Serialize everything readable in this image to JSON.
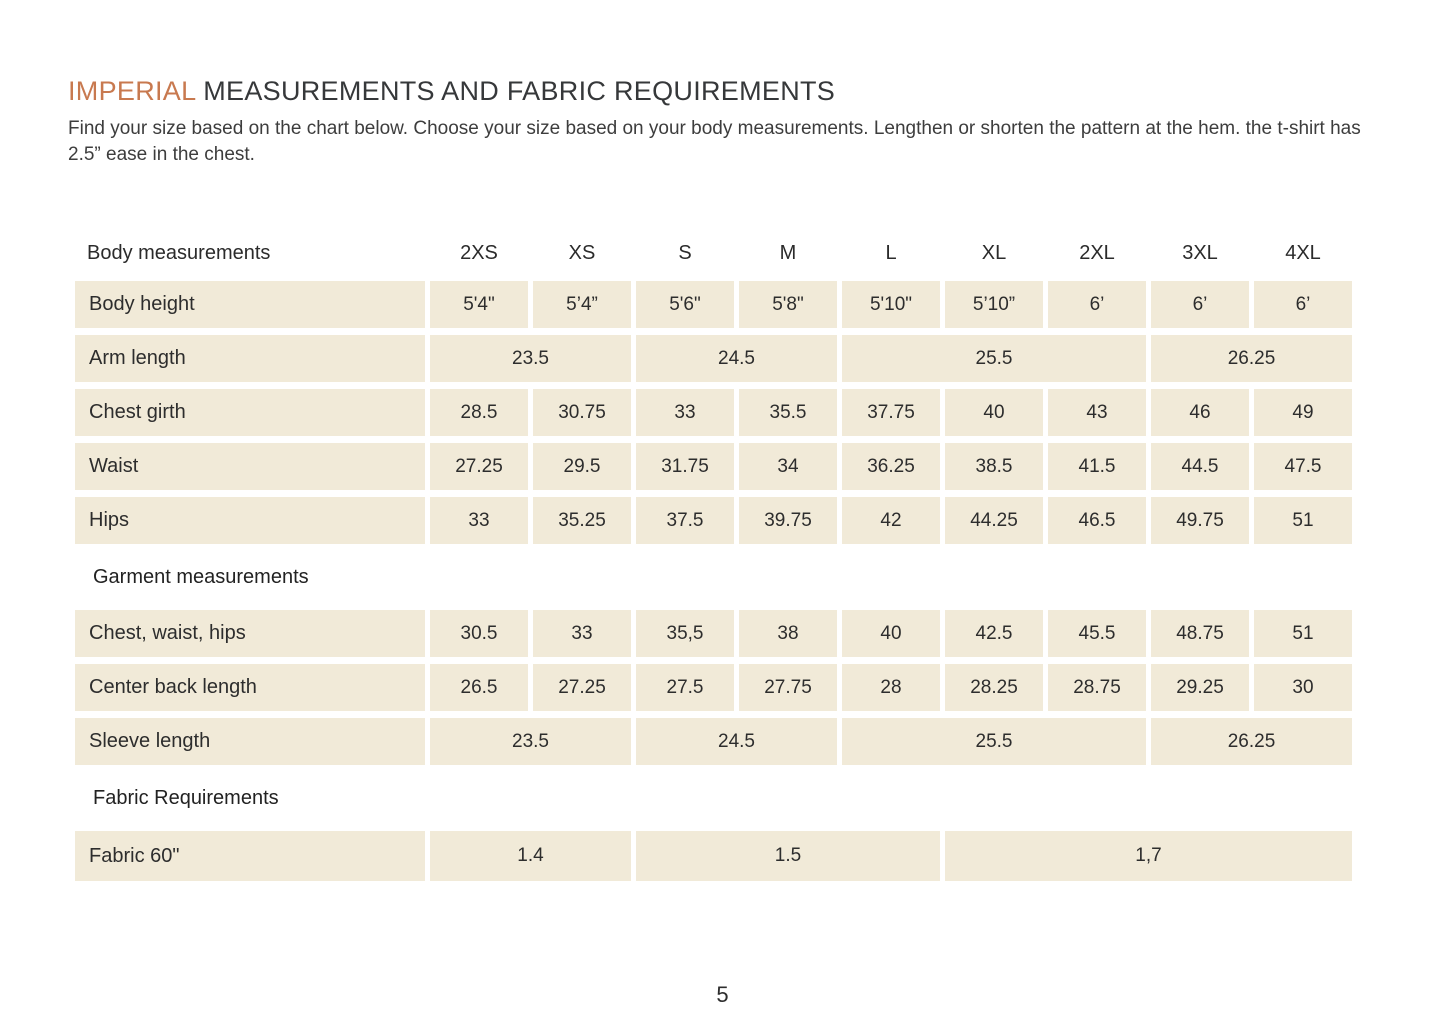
{
  "page": {
    "title_highlight": "IMPERIAL",
    "title_rest": " MEASUREMENTS AND FABRIC REQUIREMENTS",
    "intro": "Find your size based on the chart below. Choose your size based on your body measurements. Lengthen or shorten the pattern at the hem. the t-shirt has 2.5” ease in the chest.",
    "page_number": "5"
  },
  "colors": {
    "accent_orange": "#c8794f",
    "cell_beige": "#f1ead8",
    "text_dark": "#2d2d2d",
    "background": "#ffffff"
  },
  "table": {
    "label_header": "Body measurements",
    "size_headers": [
      "2XS",
      "XS",
      "S",
      "M",
      "L",
      "XL",
      "2XL",
      "3XL",
      "4XL"
    ],
    "rows": [
      {
        "label": "Body height",
        "cells": [
          {
            "t": "5'4\"",
            "s": 1
          },
          {
            "t": "5’4”",
            "s": 1
          },
          {
            "t": "5'6\"",
            "s": 1
          },
          {
            "t": "5'8\"",
            "s": 1
          },
          {
            "t": "5'10\"",
            "s": 1
          },
          {
            "t": "5’10”",
            "s": 1
          },
          {
            "t": "6’",
            "s": 1
          },
          {
            "t": "6’",
            "s": 1
          },
          {
            "t": "6’",
            "s": 1
          }
        ]
      },
      {
        "label": "Arm length",
        "cells": [
          {
            "t": "23.5",
            "s": 2
          },
          {
            "t": "24.5",
            "s": 2
          },
          {
            "t": "25.5",
            "s": 3
          },
          {
            "t": "26.25",
            "s": 2
          }
        ]
      },
      {
        "label": "Chest girth",
        "cells": [
          {
            "t": "28.5",
            "s": 1
          },
          {
            "t": "30.75",
            "s": 1
          },
          {
            "t": "33",
            "s": 1
          },
          {
            "t": "35.5",
            "s": 1
          },
          {
            "t": "37.75",
            "s": 1
          },
          {
            "t": "40",
            "s": 1
          },
          {
            "t": "43",
            "s": 1
          },
          {
            "t": "46",
            "s": 1
          },
          {
            "t": "49",
            "s": 1
          }
        ]
      },
      {
        "label": "Waist",
        "cells": [
          {
            "t": "27.25",
            "s": 1
          },
          {
            "t": "29.5",
            "s": 1
          },
          {
            "t": "31.75",
            "s": 1
          },
          {
            "t": "34",
            "s": 1
          },
          {
            "t": "36.25",
            "s": 1
          },
          {
            "t": "38.5",
            "s": 1
          },
          {
            "t": "41.5",
            "s": 1
          },
          {
            "t": "44.5",
            "s": 1
          },
          {
            "t": "47.5",
            "s": 1
          }
        ]
      },
      {
        "label": "Hips",
        "cells": [
          {
            "t": "33",
            "s": 1
          },
          {
            "t": "35.25",
            "s": 1
          },
          {
            "t": "37.5",
            "s": 1
          },
          {
            "t": "39.75",
            "s": 1
          },
          {
            "t": "42",
            "s": 1
          },
          {
            "t": "44.25",
            "s": 1
          },
          {
            "t": "46.5",
            "s": 1
          },
          {
            "t": "49.75",
            "s": 1
          },
          {
            "t": "51",
            "s": 1
          }
        ]
      },
      {
        "section": "Garment measurements"
      },
      {
        "label": "Chest, waist, hips",
        "cells": [
          {
            "t": "30.5",
            "s": 1
          },
          {
            "t": "33",
            "s": 1
          },
          {
            "t": "35,5",
            "s": 1
          },
          {
            "t": "38",
            "s": 1
          },
          {
            "t": "40",
            "s": 1
          },
          {
            "t": "42.5",
            "s": 1
          },
          {
            "t": "45.5",
            "s": 1
          },
          {
            "t": "48.75",
            "s": 1
          },
          {
            "t": "51",
            "s": 1
          }
        ]
      },
      {
        "label": "Center back length",
        "cells": [
          {
            "t": "26.5",
            "s": 1
          },
          {
            "t": "27.25",
            "s": 1
          },
          {
            "t": "27.5",
            "s": 1
          },
          {
            "t": "27.75",
            "s": 1
          },
          {
            "t": "28",
            "s": 1
          },
          {
            "t": "28.25",
            "s": 1
          },
          {
            "t": "28.75",
            "s": 1
          },
          {
            "t": "29.25",
            "s": 1
          },
          {
            "t": "30",
            "s": 1
          }
        ]
      },
      {
        "label": "Sleeve length",
        "cells": [
          {
            "t": "23.5",
            "s": 2
          },
          {
            "t": "24.5",
            "s": 2
          },
          {
            "t": "25.5",
            "s": 3
          },
          {
            "t": "26.25",
            "s": 2
          }
        ]
      },
      {
        "section": "Fabric Requirements"
      },
      {
        "label": "Fabric 60\"",
        "tall": true,
        "cells": [
          {
            "t": "1.4",
            "s": 2
          },
          {
            "t": "1.5",
            "s": 3
          },
          {
            "t": "1,7",
            "s": 4
          }
        ]
      }
    ]
  }
}
